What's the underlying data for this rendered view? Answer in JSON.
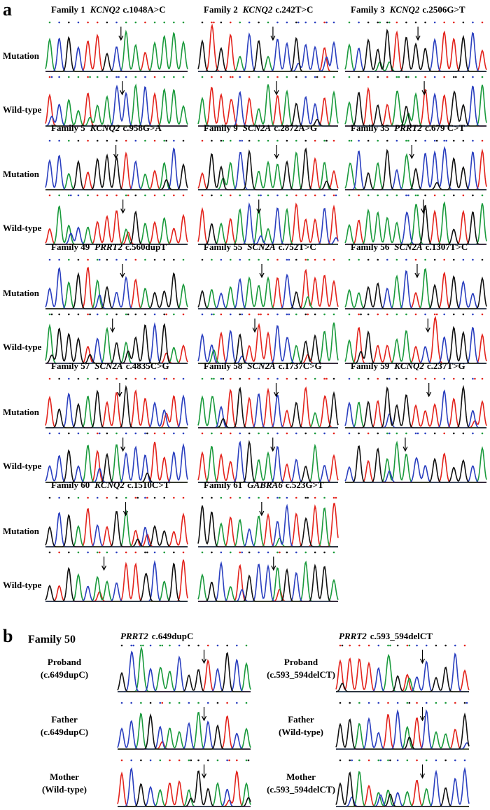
{
  "panel_a": {
    "label": "a",
    "row_labels": [
      "Mutation",
      "Wild-type"
    ],
    "families": [
      {
        "label": "Family 1",
        "gene": "KCNQ2",
        "variant": "c.1048A>C"
      },
      {
        "label": "Family 2",
        "gene": "KCNQ2",
        "variant": "c.242T>C"
      },
      {
        "label": "Family 3",
        "gene": "KCNQ2",
        "variant": "c.2506G>T"
      },
      {
        "label": "Family 5",
        "gene": "KCNQ2",
        "variant": "c.958G>A"
      },
      {
        "label": "Family 9",
        "gene": "SCN2A",
        "variant": "c.2872A>G"
      },
      {
        "label": "Family 35",
        "gene": "PRRT2",
        "variant": "c.679 C>T"
      },
      {
        "label": "Family 49",
        "gene": "PRRT2",
        "variant": "c.560dupT"
      },
      {
        "label": "Family 55",
        "gene": "SCN2A",
        "variant": "c.752T>C"
      },
      {
        "label": "Family 56",
        "gene": "SCN2A",
        "variant": "c.1307T>C"
      },
      {
        "label": "Family 57",
        "gene": "SCN2A",
        "variant": "c.4835C>G"
      },
      {
        "label": "Family 58",
        "gene": "SCN2A",
        "variant": "c.1737C>G"
      },
      {
        "label": "Family 59",
        "gene": "KCNQ2",
        "variant": "c.237T>G"
      },
      {
        "label": "Family 60",
        "gene": "KCNQ2",
        "variant": "c.1510C>T"
      },
      {
        "label": "Family 61",
        "gene": "GABRA6",
        "variant": "c.523G>T"
      }
    ]
  },
  "panel_b": {
    "label": "b",
    "family": "Family 50",
    "columns": [
      {
        "gene": "PRRT2",
        "variant": "c.649dupC",
        "rows": [
          [
            "Proband",
            "(c.649dupC)"
          ],
          [
            "Father",
            "(c.649dupC)"
          ],
          [
            "Mother",
            "(Wild-type)"
          ]
        ]
      },
      {
        "gene": "PRRT2",
        "variant": "c.593_594delCT",
        "rows": [
          [
            "Proband",
            "(c.593_594delCT)"
          ],
          [
            "Father",
            "(Wild-type)"
          ],
          [
            "Mother",
            "(c.593_594delCT)"
          ]
        ]
      }
    ]
  }
}
